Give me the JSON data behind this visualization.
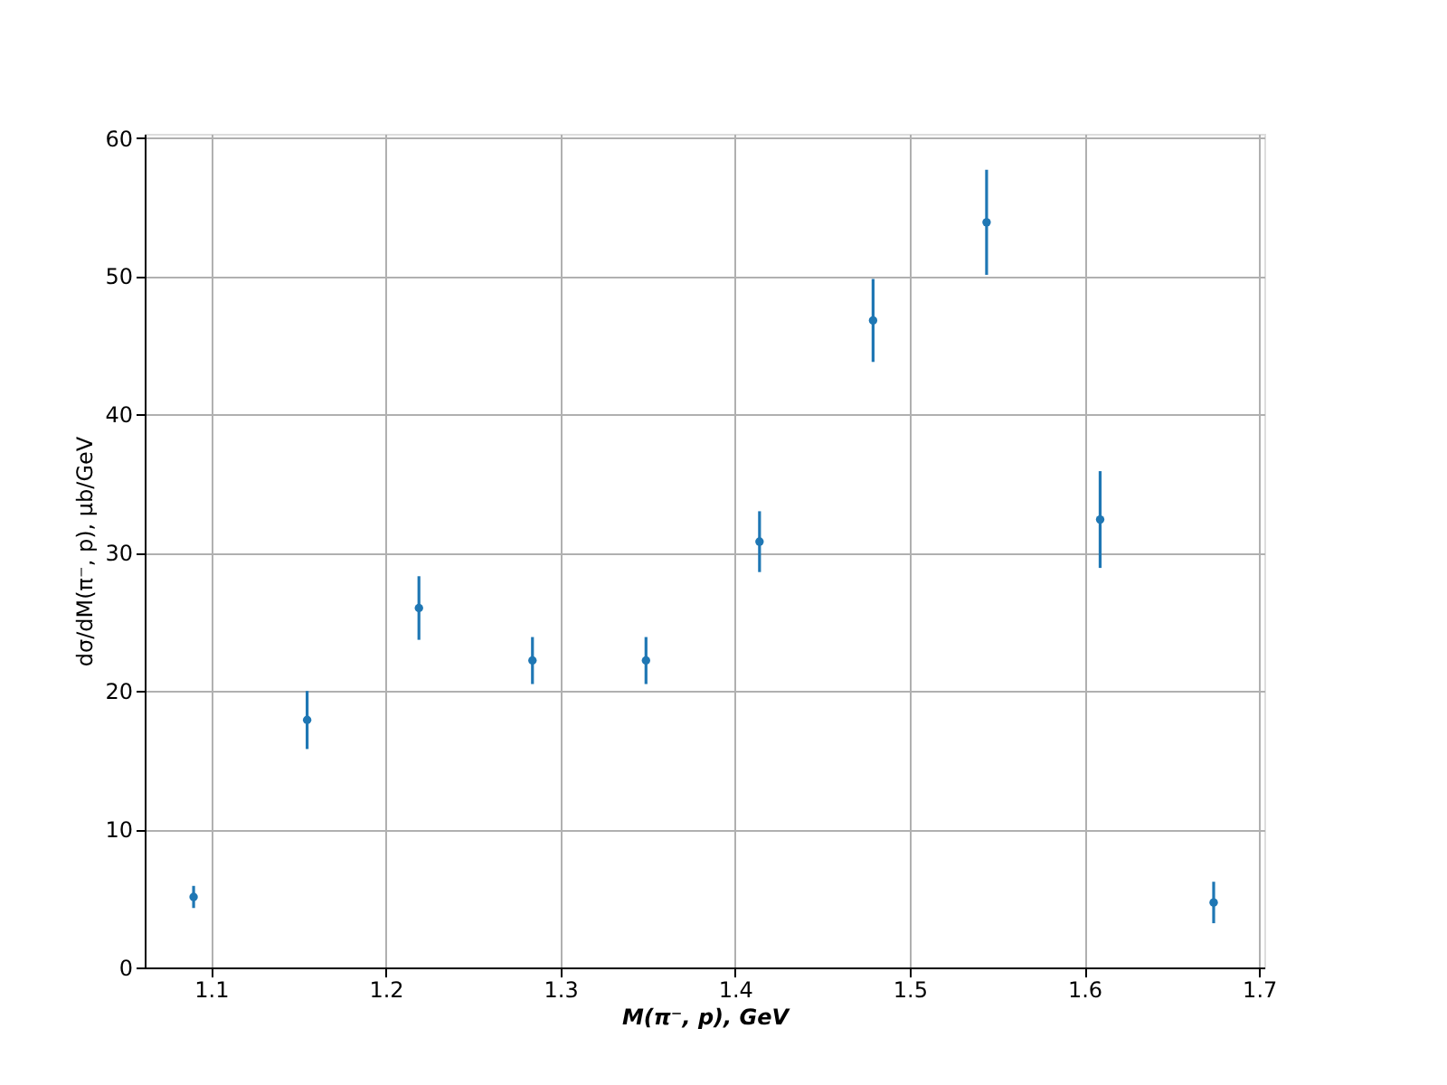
{
  "chart_data": {
    "type": "scatter",
    "xlabel": "M(π⁻, p), GeV",
    "ylabel": "dσ/dM(π⁻, p), μb/GeV",
    "x": [
      1.09,
      1.155,
      1.219,
      1.284,
      1.349,
      1.414,
      1.479,
      1.544,
      1.609,
      1.674
    ],
    "series": [
      {
        "color": "#1f77b4",
        "values": [
          5.1,
          17.9,
          26.0,
          22.2,
          22.2,
          30.8,
          46.8,
          53.9,
          32.4,
          4.7
        ],
        "errors": [
          0.8,
          2.1,
          2.3,
          1.7,
          1.7,
          2.2,
          3.0,
          3.8,
          3.5,
          1.5
        ]
      }
    ],
    "xlim": [
      1.062,
      1.703
    ],
    "ylim": [
      0,
      60.3
    ],
    "xticks": [
      1.1,
      1.2,
      1.3,
      1.4,
      1.5,
      1.6,
      1.7
    ],
    "yticks": [
      0,
      10,
      20,
      30,
      40,
      50,
      60
    ],
    "grid": true,
    "marker": "circle"
  }
}
